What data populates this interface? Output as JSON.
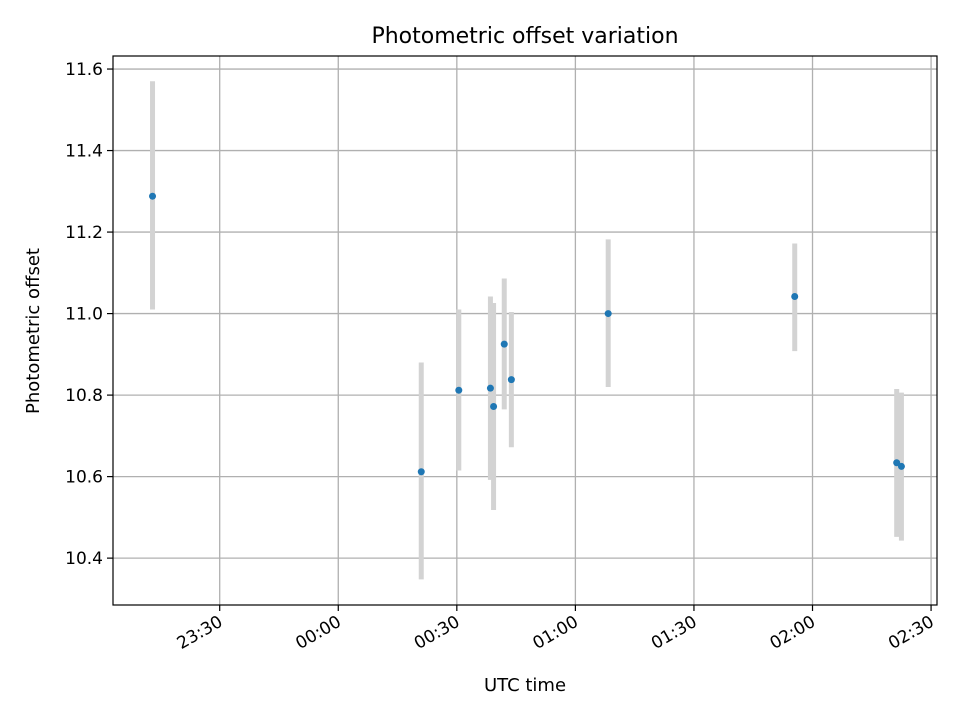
{
  "chart_data": {
    "type": "scatter",
    "title": "Photometric offset variation",
    "xlabel": "UTC time",
    "ylabel": "Photometric offset",
    "x_tick_labels": [
      "23:30",
      "00:00",
      "00:30",
      "01:00",
      "01:30",
      "02:00",
      "02:30"
    ],
    "y_tick_labels": [
      "10.4",
      "10.6",
      "10.8",
      "11.0",
      "11.2",
      "11.4",
      "11.6"
    ],
    "x_ticks_min": [
      -30,
      0,
      30,
      60,
      90,
      120,
      150
    ],
    "y_ticks": [
      10.4,
      10.6,
      10.8,
      11.0,
      11.2,
      11.4,
      11.6
    ],
    "xlim_min": [
      -57,
      151.5
    ],
    "ylim": [
      10.285,
      11.632
    ],
    "grid": true,
    "points": [
      {
        "x": -47,
        "y": 11.288,
        "err_low": 11.01,
        "err_high": 11.57
      },
      {
        "x": 21,
        "y": 10.612,
        "err_low": 10.348,
        "err_high": 10.88
      },
      {
        "x": 30.5,
        "y": 10.812,
        "err_low": 10.615,
        "err_high": 11.01
      },
      {
        "x": 38.5,
        "y": 10.817,
        "err_low": 10.592,
        "err_high": 11.042
      },
      {
        "x": 39.3,
        "y": 10.772,
        "err_low": 10.518,
        "err_high": 11.026
      },
      {
        "x": 42,
        "y": 10.925,
        "err_low": 10.765,
        "err_high": 11.086
      },
      {
        "x": 43.8,
        "y": 10.838,
        "err_low": 10.672,
        "err_high": 11.004
      },
      {
        "x": 68.3,
        "y": 11.0,
        "err_low": 10.82,
        "err_high": 11.182
      },
      {
        "x": 115.5,
        "y": 11.042,
        "err_low": 10.908,
        "err_high": 11.172
      },
      {
        "x": 141.3,
        "y": 10.634,
        "err_low": 10.452,
        "err_high": 10.815
      },
      {
        "x": 142.5,
        "y": 10.625,
        "err_low": 10.443,
        "err_high": 10.806
      }
    ],
    "colors": {
      "point": "#1f77b4",
      "errorbar": "#d3d3d3",
      "grid": "#b0b0b0",
      "axes": "#000000"
    }
  }
}
